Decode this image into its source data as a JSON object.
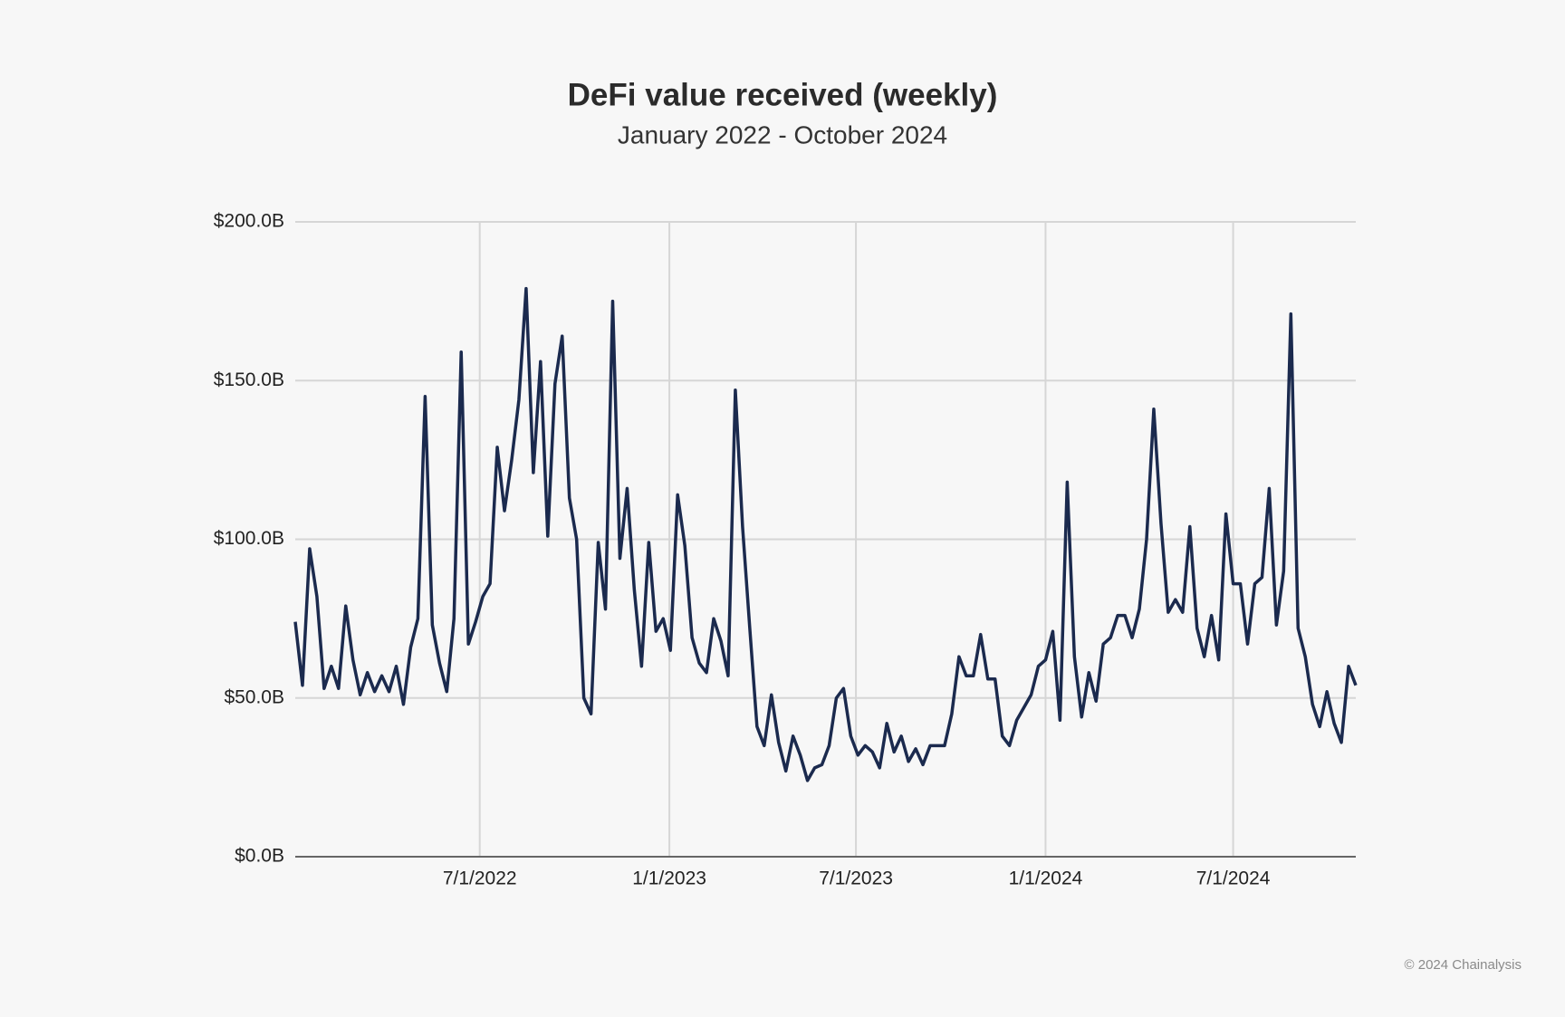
{
  "chart_data": {
    "type": "line",
    "title": "DeFi value received (weekly)",
    "subtitle": "January 2022  - October 2024",
    "footer": "© 2024 Chainalysis",
    "color": "#1b2a4e",
    "grid": true,
    "x": [
      "2022-01-03",
      "2022-01-10",
      "2022-01-17",
      "2022-01-24",
      "2022-01-31",
      "2022-02-07",
      "2022-02-14",
      "2022-02-21",
      "2022-02-28",
      "2022-03-07",
      "2022-03-14",
      "2022-03-21",
      "2022-03-28",
      "2022-04-04",
      "2022-04-11",
      "2022-04-18",
      "2022-04-25",
      "2022-05-02",
      "2022-05-09",
      "2022-05-16",
      "2022-05-23",
      "2022-05-30",
      "2022-06-06",
      "2022-06-13",
      "2022-06-20",
      "2022-06-27",
      "2022-07-04",
      "2022-07-11",
      "2022-07-18",
      "2022-07-25",
      "2022-08-01",
      "2022-08-08",
      "2022-08-15",
      "2022-08-22",
      "2022-08-29",
      "2022-09-05",
      "2022-09-12",
      "2022-09-19",
      "2022-09-26",
      "2022-10-03",
      "2022-10-10",
      "2022-10-17",
      "2022-10-24",
      "2022-10-31",
      "2022-11-07",
      "2022-11-14",
      "2022-11-21",
      "2022-11-28",
      "2022-12-05",
      "2022-12-12",
      "2022-12-19",
      "2022-12-26",
      "2023-01-02",
      "2023-01-09",
      "2023-01-16",
      "2023-01-23",
      "2023-01-30",
      "2023-02-06",
      "2023-02-13",
      "2023-02-20",
      "2023-02-27",
      "2023-03-06",
      "2023-03-13",
      "2023-03-20",
      "2023-03-27",
      "2023-04-03",
      "2023-04-10",
      "2023-04-17",
      "2023-04-24",
      "2023-05-01",
      "2023-05-08",
      "2023-05-15",
      "2023-05-22",
      "2023-05-29",
      "2023-06-05",
      "2023-06-12",
      "2023-06-19",
      "2023-06-26",
      "2023-07-03",
      "2023-07-10",
      "2023-07-17",
      "2023-07-24",
      "2023-07-31",
      "2023-08-07",
      "2023-08-14",
      "2023-08-21",
      "2023-08-28",
      "2023-09-04",
      "2023-09-11",
      "2023-09-18",
      "2023-09-25",
      "2023-10-02",
      "2023-10-09",
      "2023-10-16",
      "2023-10-23",
      "2023-10-30",
      "2023-11-06",
      "2023-11-13",
      "2023-11-20",
      "2023-11-27",
      "2023-12-04",
      "2023-12-11",
      "2023-12-18",
      "2023-12-25",
      "2024-01-01",
      "2024-01-08",
      "2024-01-15",
      "2024-01-22",
      "2024-01-29",
      "2024-02-05",
      "2024-02-12",
      "2024-02-19",
      "2024-02-26",
      "2024-03-04",
      "2024-03-11",
      "2024-03-18",
      "2024-03-25",
      "2024-04-01",
      "2024-04-08",
      "2024-04-15",
      "2024-04-22",
      "2024-04-29",
      "2024-05-06",
      "2024-05-13",
      "2024-05-20",
      "2024-05-27",
      "2024-06-03",
      "2024-06-10",
      "2024-06-17",
      "2024-06-24",
      "2024-07-01",
      "2024-07-08",
      "2024-07-15",
      "2024-07-22",
      "2024-07-29",
      "2024-08-05",
      "2024-08-12",
      "2024-08-19",
      "2024-08-26",
      "2024-09-02",
      "2024-09-09",
      "2024-09-16",
      "2024-09-23",
      "2024-09-30",
      "2024-10-07",
      "2024-10-14",
      "2024-10-21",
      "2024-10-28"
    ],
    "values": [
      74,
      54,
      97,
      82,
      53,
      60,
      53,
      79,
      62,
      51,
      58,
      52,
      57,
      52,
      60,
      48,
      66,
      75,
      145,
      73,
      61,
      52,
      75,
      159,
      67,
      74,
      82,
      86,
      129,
      109,
      125,
      144,
      179,
      121,
      156,
      101,
      149,
      164,
      113,
      100,
      50,
      45,
      99,
      78,
      175,
      94,
      116,
      84,
      60,
      99,
      71,
      75,
      65,
      114,
      98,
      69,
      61,
      58,
      75,
      68,
      57,
      147,
      104,
      72,
      41,
      35,
      51,
      36,
      27,
      38,
      32,
      24,
      28,
      29,
      35,
      50,
      53,
      38,
      32,
      35,
      33,
      28,
      42,
      33,
      38,
      30,
      34,
      29,
      35,
      35,
      35,
      45,
      63,
      57,
      57,
      70,
      56,
      56,
      38,
      35,
      43,
      47,
      51,
      60,
      62,
      71,
      43,
      118,
      63,
      44,
      58,
      49,
      67,
      69,
      76,
      76,
      69,
      78,
      100,
      141,
      105,
      77,
      81,
      77,
      104,
      72,
      63,
      76,
      62,
      108,
      86,
      86,
      67,
      86,
      88,
      116,
      73,
      90,
      171,
      72,
      63,
      48,
      41,
      52,
      42,
      36,
      60,
      54
    ],
    "xlim": [
      "2022-01-03",
      "2024-10-28"
    ],
    "xticks": [
      {
        "value": "2022-07-01",
        "label": "7/1/2022"
      },
      {
        "value": "2023-01-01",
        "label": "1/1/2023"
      },
      {
        "value": "2023-07-01",
        "label": "7/1/2023"
      },
      {
        "value": "2024-01-01",
        "label": "1/1/2024"
      },
      {
        "value": "2024-07-01",
        "label": "7/1/2024"
      }
    ],
    "ylim": [
      0,
      200
    ],
    "yticks": [
      {
        "value": 0,
        "label": "$0.0B"
      },
      {
        "value": 50,
        "label": "$50.0B"
      },
      {
        "value": 100,
        "label": "$100.0B"
      },
      {
        "value": 150,
        "label": "$150.0B"
      },
      {
        "value": 200,
        "label": "$200.0B"
      }
    ]
  }
}
